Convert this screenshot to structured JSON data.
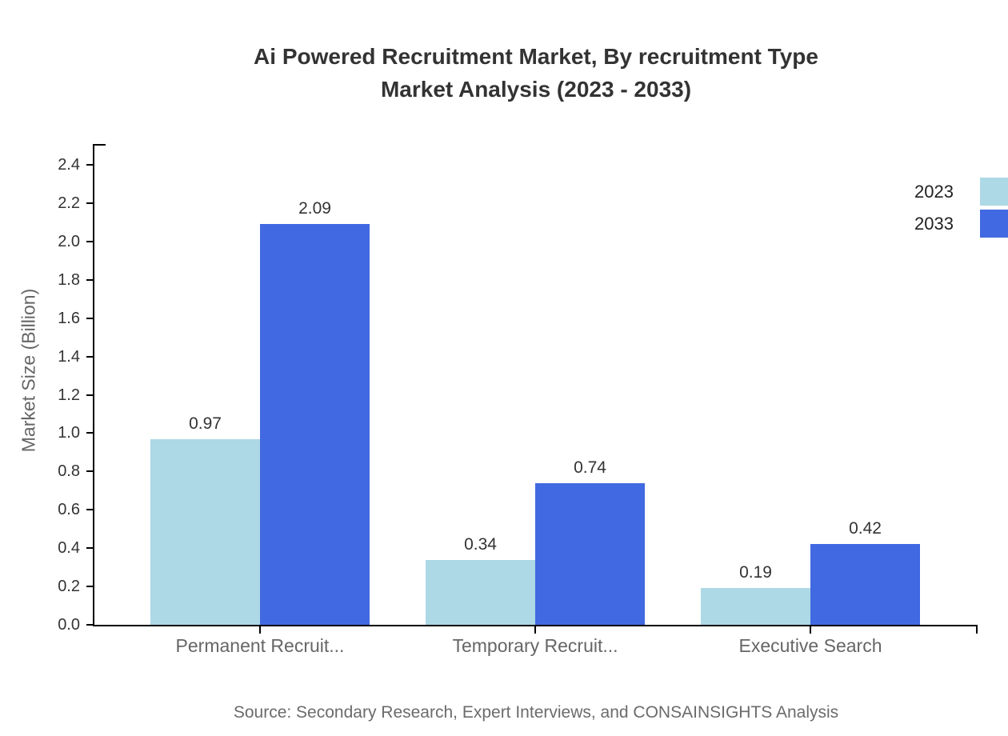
{
  "title": {
    "line1": "Ai Powered Recruitment Market, By recruitment Type",
    "line2": "Market Analysis (2023 - 2033)"
  },
  "source_text": "Source: Secondary Research, Expert Interviews, and CONSAINSIGHTS Analysis",
  "chart_data": {
    "type": "bar",
    "categories": [
      "Permanent Recruit...",
      "Temporary Recruit...",
      "Executive Search"
    ],
    "series": [
      {
        "name": "2023",
        "color": "#ADD8E6",
        "values": [
          0.97,
          0.34,
          0.19
        ]
      },
      {
        "name": "2033",
        "color": "#4169E1",
        "values": [
          2.09,
          0.74,
          0.42
        ]
      }
    ],
    "title": "Ai Powered Recruitment Market, By recruitment Type Market Analysis (2023 - 2033)",
    "xlabel": "",
    "ylabel": "Market Size (Billion)",
    "ylim": [
      0.0,
      2.4
    ],
    "yticks": [
      "0.0",
      "0.2",
      "0.4",
      "0.6",
      "0.8",
      "1.0",
      "1.2",
      "1.4",
      "1.6",
      "1.8",
      "2.0",
      "2.2",
      "2.4"
    ],
    "value_labels": [
      "0.97",
      "2.09",
      "0.34",
      "0.74",
      "0.19",
      "0.42"
    ],
    "grid": false,
    "legend_position": "top-right",
    "axis_color": "#000000",
    "text_colors": {
      "title": "#333333",
      "ticks": "#333333",
      "categories": "#666666",
      "source": "#6b6b6b"
    }
  }
}
